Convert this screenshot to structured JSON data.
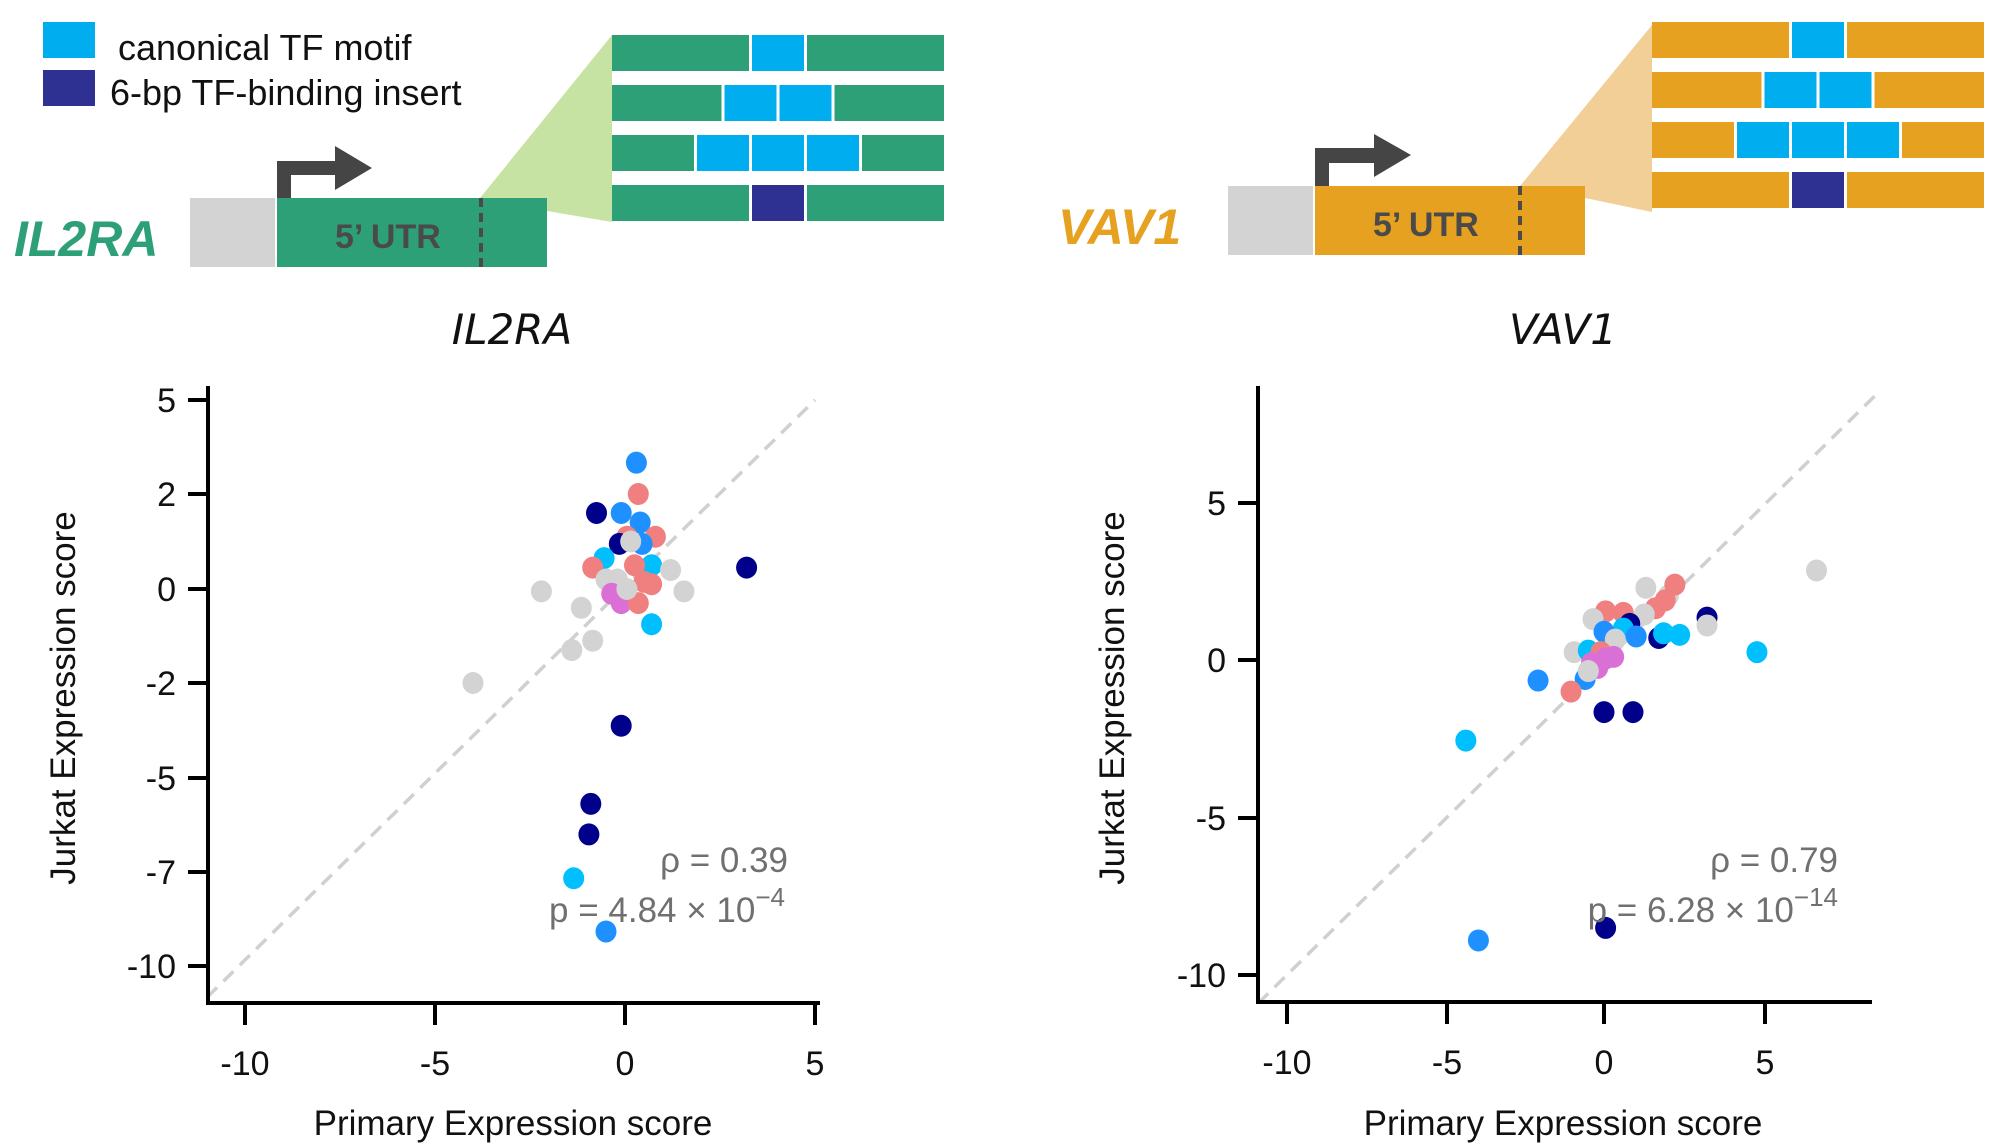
{
  "legend": {
    "items": [
      {
        "label": "canonical TF motif",
        "color": "#00adef"
      },
      {
        "label": "6-bp TF-binding insert",
        "color": "#2e3192"
      }
    ]
  },
  "schematics": [
    {
      "gene": "IL2RA",
      "color": "#2da078",
      "fan_color": "#c6e3a4",
      "utr_label": "5’ UTR",
      "promoter_color": "#d3d3d3",
      "arrow_color": "#454545",
      "rows": [
        {
          "type": "canonical",
          "count": 1
        },
        {
          "type": "canonical",
          "count": 2
        },
        {
          "type": "canonical",
          "count": 3
        },
        {
          "type": "insert",
          "count": 1
        }
      ]
    },
    {
      "gene": "VAV1",
      "color": "#e5a11f",
      "fan_color": "#f3cf98",
      "utr_label": "5’ UTR",
      "promoter_color": "#d3d3d3",
      "arrow_color": "#454545",
      "rows": [
        {
          "type": "canonical",
          "count": 1
        },
        {
          "type": "canonical",
          "count": 2
        },
        {
          "type": "canonical",
          "count": 3
        },
        {
          "type": "insert",
          "count": 1
        }
      ]
    }
  ],
  "chart_data": [
    {
      "type": "scatter",
      "title": "IL2RA",
      "xlabel": "Primary Expression score",
      "ylabel": "Jurkat Expression score",
      "xticks": [
        -10,
        -5,
        0,
        5
      ],
      "xtick_labels": [
        "-10",
        "-5",
        "0",
        "5"
      ],
      "yticks": [
        5,
        2,
        0,
        -2,
        -5,
        -7,
        -10
      ],
      "ytick_labels": [
        "5",
        "2",
        "0",
        "-2",
        "-5",
        "-7",
        "-10"
      ],
      "yscale": "symlog-like (ticks evenly spaced)",
      "xlim": [
        -11,
        5
      ],
      "ylim": [
        -11,
        5
      ],
      "grid": false,
      "identity_line": true,
      "annotation": {
        "rho": "ρ = 0.39",
        "p_mant": "p = 4.84 × 10",
        "p_exp": "−4"
      },
      "points": [
        {
          "x": 0.3,
          "y": 3.0,
          "c": "#1e90ff"
        },
        {
          "x": 0.35,
          "y": 2.0,
          "c": "#f08080"
        },
        {
          "x": -0.75,
          "y": 1.6,
          "c": "#00008b"
        },
        {
          "x": -0.1,
          "y": 1.6,
          "c": "#1e90ff"
        },
        {
          "x": 0.4,
          "y": 1.4,
          "c": "#1e90ff"
        },
        {
          "x": 0.8,
          "y": 1.1,
          "c": "#f08080"
        },
        {
          "x": 0.05,
          "y": 1.1,
          "c": "#f08080"
        },
        {
          "x": -0.15,
          "y": 0.95,
          "c": "#00008b"
        },
        {
          "x": 0.45,
          "y": 0.95,
          "c": "#1e90ff"
        },
        {
          "x": 0.15,
          "y": 1.0,
          "c": "#d3d3d3"
        },
        {
          "x": -0.55,
          "y": 0.65,
          "c": "#00bfff"
        },
        {
          "x": 0.7,
          "y": 0.5,
          "c": "#00bfff"
        },
        {
          "x": -0.85,
          "y": 0.45,
          "c": "#f08080"
        },
        {
          "x": 0.25,
          "y": 0.5,
          "c": "#f08080"
        },
        {
          "x": 1.2,
          "y": 0.4,
          "c": "#d3d3d3"
        },
        {
          "x": 3.2,
          "y": 0.45,
          "c": "#00008b"
        },
        {
          "x": -0.5,
          "y": 0.2,
          "c": "#d3d3d3"
        },
        {
          "x": -0.2,
          "y": 0.2,
          "c": "#d3d3d3"
        },
        {
          "x": 0.5,
          "y": 0.15,
          "c": "#f08080"
        },
        {
          "x": 0.7,
          "y": 0.1,
          "c": "#f08080"
        },
        {
          "x": -0.35,
          "y": -0.1,
          "c": "#da70d6"
        },
        {
          "x": -0.1,
          "y": -0.3,
          "c": "#da70d6"
        },
        {
          "x": 0.35,
          "y": -0.3,
          "c": "#f08080"
        },
        {
          "x": 0.05,
          "y": 0.0,
          "c": "#d3d3d3"
        },
        {
          "x": -2.2,
          "y": -0.05,
          "c": "#d3d3d3"
        },
        {
          "x": 1.55,
          "y": -0.05,
          "c": "#d3d3d3"
        },
        {
          "x": -1.15,
          "y": -0.4,
          "c": "#d3d3d3"
        },
        {
          "x": 0.7,
          "y": -0.75,
          "c": "#00bfff"
        },
        {
          "x": -0.85,
          "y": -1.1,
          "c": "#d3d3d3"
        },
        {
          "x": -1.4,
          "y": -1.3,
          "c": "#d3d3d3"
        },
        {
          "x": -4.0,
          "y": -2.0,
          "c": "#d3d3d3"
        },
        {
          "x": -0.1,
          "y": -3.35,
          "c": "#00008b"
        },
        {
          "x": -0.9,
          "y": -5.55,
          "c": "#00008b"
        },
        {
          "x": -0.95,
          "y": -6.2,
          "c": "#00008b"
        },
        {
          "x": -1.35,
          "y": -7.2,
          "c": "#00bfff"
        },
        {
          "x": -0.5,
          "y": -8.9,
          "c": "#1e90ff"
        }
      ]
    },
    {
      "type": "scatter",
      "title": "VAV1",
      "xlabel": "Primary Expression score",
      "ylabel": "Jurkat Expression score",
      "xticks": [
        -10,
        -5,
        0,
        5
      ],
      "xtick_labels": [
        "-10",
        "-5",
        "0",
        "5"
      ],
      "yticks": [
        5,
        0,
        -5,
        -10
      ],
      "ytick_labels": [
        "5",
        "0",
        "-5",
        "-10"
      ],
      "xlim": [
        -10.9,
        8.5
      ],
      "ylim": [
        -10.9,
        8.5
      ],
      "grid": false,
      "identity_line": true,
      "annotation": {
        "rho": "ρ = 0.79",
        "p_mant": "p = 6.28 × 10",
        "p_exp": "−14"
      },
      "points": [
        {
          "x": 6.6,
          "y": 2.85,
          "c": "#d3d3d3"
        },
        {
          "x": 1.3,
          "y": 2.3,
          "c": "#d3d3d3"
        },
        {
          "x": 2.0,
          "y": 2.05,
          "c": "#d3d3d3"
        },
        {
          "x": 2.2,
          "y": 2.4,
          "c": "#f08080"
        },
        {
          "x": 1.9,
          "y": 1.9,
          "c": "#f08080"
        },
        {
          "x": 1.6,
          "y": 1.65,
          "c": "#f08080"
        },
        {
          "x": 0.05,
          "y": 1.55,
          "c": "#f08080"
        },
        {
          "x": 0.6,
          "y": 1.5,
          "c": "#f08080"
        },
        {
          "x": -0.35,
          "y": 1.3,
          "c": "#d3d3d3"
        },
        {
          "x": 1.25,
          "y": 1.45,
          "c": "#d3d3d3"
        },
        {
          "x": 3.2,
          "y": 1.35,
          "c": "#00008b"
        },
        {
          "x": 3.2,
          "y": 1.1,
          "c": "#d3d3d3"
        },
        {
          "x": 0.8,
          "y": 1.15,
          "c": "#00008b"
        },
        {
          "x": 0.6,
          "y": 1.0,
          "c": "#00bfff"
        },
        {
          "x": 0.0,
          "y": 0.9,
          "c": "#1e90ff"
        },
        {
          "x": 1.7,
          "y": 0.7,
          "c": "#00008b"
        },
        {
          "x": 1.85,
          "y": 0.85,
          "c": "#00bfff"
        },
        {
          "x": 2.35,
          "y": 0.8,
          "c": "#00bfff"
        },
        {
          "x": 1.0,
          "y": 0.75,
          "c": "#1e90ff"
        },
        {
          "x": 0.35,
          "y": 0.65,
          "c": "#d3d3d3"
        },
        {
          "x": 4.75,
          "y": 0.25,
          "c": "#00bfff"
        },
        {
          "x": -0.95,
          "y": 0.25,
          "c": "#d3d3d3"
        },
        {
          "x": -0.5,
          "y": 0.3,
          "c": "#00bfff"
        },
        {
          "x": -0.1,
          "y": 0.25,
          "c": "#f08080"
        },
        {
          "x": -0.4,
          "y": -0.1,
          "c": "#da70d6"
        },
        {
          "x": 0.05,
          "y": 0.05,
          "c": "#da70d6"
        },
        {
          "x": 0.3,
          "y": 0.1,
          "c": "#da70d6"
        },
        {
          "x": -0.2,
          "y": -0.25,
          "c": "#da70d6"
        },
        {
          "x": -0.6,
          "y": -0.6,
          "c": "#1e90ff"
        },
        {
          "x": -0.5,
          "y": -0.35,
          "c": "#d3d3d3"
        },
        {
          "x": -2.1,
          "y": -0.65,
          "c": "#1e90ff"
        },
        {
          "x": -1.05,
          "y": -1.0,
          "c": "#f08080"
        },
        {
          "x": 0.0,
          "y": -1.65,
          "c": "#00008b"
        },
        {
          "x": 0.9,
          "y": -1.65,
          "c": "#00008b"
        },
        {
          "x": -4.4,
          "y": -2.55,
          "c": "#00bfff"
        },
        {
          "x": -4.0,
          "y": -8.9,
          "c": "#1e90ff"
        },
        {
          "x": 0.05,
          "y": -8.5,
          "c": "#00008b"
        }
      ]
    }
  ]
}
